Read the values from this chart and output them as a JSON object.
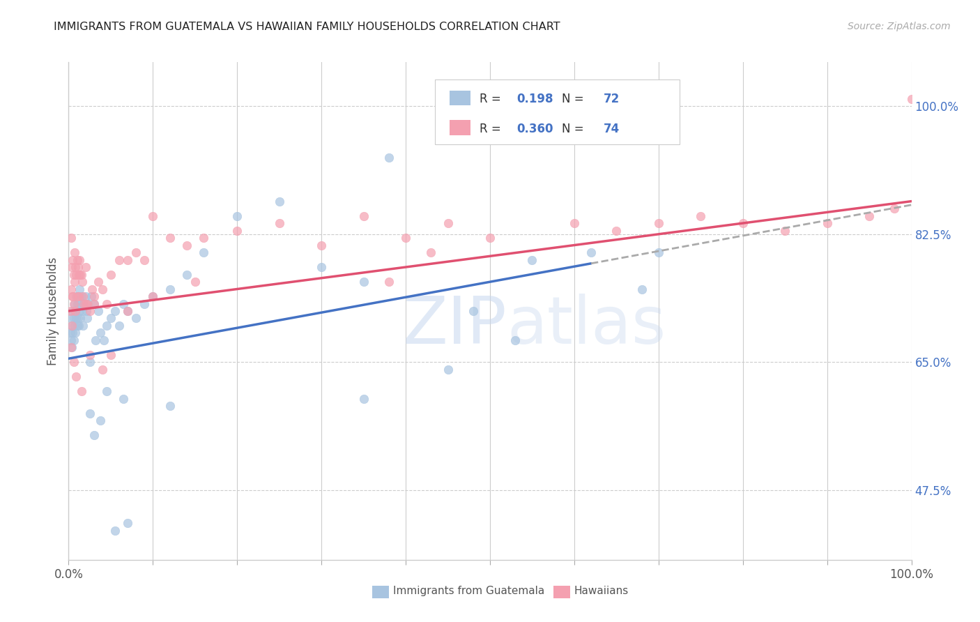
{
  "title": "IMMIGRANTS FROM GUATEMALA VS HAWAIIAN FAMILY HOUSEHOLDS CORRELATION CHART",
  "source": "Source: ZipAtlas.com",
  "ylabel": "Family Households",
  "ytick_labels": [
    "47.5%",
    "65.0%",
    "82.5%",
    "100.0%"
  ],
  "ytick_values": [
    0.475,
    0.65,
    0.825,
    1.0
  ],
  "legend_label1": "Immigrants from Guatemala",
  "legend_label2": "Hawaiians",
  "R1": "0.198",
  "N1": "72",
  "R2": "0.360",
  "N2": "74",
  "color_blue": "#a8c4e0",
  "color_pink": "#f4a0b0",
  "color_blue_line": "#4472c4",
  "color_pink_line": "#e05070",
  "color_blue_text": "#4472c4",
  "color_dash": "#aaaaaa",
  "blue_line_x0": 0.0,
  "blue_line_x1": 0.62,
  "blue_line_y0": 0.655,
  "blue_line_y1": 0.785,
  "dash_line_x0": 0.62,
  "dash_line_x1": 1.0,
  "dash_line_y0": 0.785,
  "dash_line_y1": 0.865,
  "pink_line_x0": 0.0,
  "pink_line_x1": 1.0,
  "pink_line_y0": 0.72,
  "pink_line_y1": 0.87,
  "xlim": [
    0.0,
    1.0
  ],
  "ylim": [
    0.38,
    1.06
  ],
  "xticks": [
    0.0,
    0.1,
    0.2,
    0.3,
    0.4,
    0.5,
    0.6,
    0.7,
    0.8,
    0.9,
    1.0
  ],
  "blue_x": [
    0.002,
    0.003,
    0.003,
    0.004,
    0.004,
    0.005,
    0.005,
    0.006,
    0.006,
    0.007,
    0.007,
    0.008,
    0.008,
    0.009,
    0.009,
    0.01,
    0.01,
    0.011,
    0.011,
    0.012,
    0.012,
    0.013,
    0.013,
    0.014,
    0.015,
    0.016,
    0.017,
    0.018,
    0.02,
    0.021,
    0.022,
    0.023,
    0.025,
    0.027,
    0.03,
    0.032,
    0.035,
    0.038,
    0.042,
    0.045,
    0.05,
    0.055,
    0.06,
    0.065,
    0.07,
    0.08,
    0.09,
    0.1,
    0.12,
    0.14,
    0.16,
    0.2,
    0.25,
    0.3,
    0.35,
    0.38,
    0.48,
    0.53,
    0.55,
    0.62,
    0.68,
    0.7,
    0.35,
    0.45,
    0.065,
    0.12,
    0.025,
    0.03,
    0.038,
    0.045,
    0.055,
    0.07
  ],
  "blue_y": [
    0.69,
    0.71,
    0.68,
    0.7,
    0.67,
    0.72,
    0.69,
    0.71,
    0.68,
    0.73,
    0.7,
    0.72,
    0.69,
    0.74,
    0.71,
    0.73,
    0.7,
    0.74,
    0.71,
    0.73,
    0.7,
    0.75,
    0.72,
    0.71,
    0.74,
    0.72,
    0.7,
    0.73,
    0.74,
    0.72,
    0.71,
    0.73,
    0.65,
    0.74,
    0.73,
    0.68,
    0.72,
    0.69,
    0.68,
    0.7,
    0.71,
    0.72,
    0.7,
    0.73,
    0.72,
    0.71,
    0.73,
    0.74,
    0.75,
    0.77,
    0.8,
    0.85,
    0.87,
    0.78,
    0.76,
    0.93,
    0.72,
    0.68,
    0.79,
    0.8,
    0.75,
    0.8,
    0.6,
    0.64,
    0.6,
    0.59,
    0.58,
    0.55,
    0.57,
    0.61,
    0.42,
    0.43
  ],
  "pink_x": [
    0.002,
    0.003,
    0.003,
    0.004,
    0.004,
    0.005,
    0.005,
    0.006,
    0.006,
    0.007,
    0.007,
    0.008,
    0.009,
    0.01,
    0.01,
    0.011,
    0.012,
    0.013,
    0.014,
    0.015,
    0.016,
    0.017,
    0.018,
    0.02,
    0.022,
    0.025,
    0.028,
    0.03,
    0.035,
    0.04,
    0.045,
    0.05,
    0.06,
    0.07,
    0.08,
    0.09,
    0.1,
    0.12,
    0.14,
    0.16,
    0.2,
    0.25,
    0.3,
    0.35,
    0.4,
    0.45,
    0.5,
    0.6,
    0.65,
    0.7,
    0.75,
    0.8,
    0.85,
    0.9,
    0.95,
    0.98,
    0.003,
    0.006,
    0.009,
    0.015,
    0.025,
    0.04,
    0.005,
    0.008,
    0.012,
    0.02,
    0.03,
    0.05,
    0.07,
    0.1,
    0.15,
    0.38,
    0.43,
    1.0
  ],
  "pink_y": [
    0.72,
    0.82,
    0.75,
    0.78,
    0.7,
    0.79,
    0.74,
    0.77,
    0.73,
    0.8,
    0.76,
    0.78,
    0.77,
    0.79,
    0.74,
    0.78,
    0.77,
    0.79,
    0.77,
    0.77,
    0.76,
    0.74,
    0.73,
    0.78,
    0.73,
    0.72,
    0.75,
    0.74,
    0.76,
    0.75,
    0.73,
    0.77,
    0.79,
    0.79,
    0.8,
    0.79,
    0.85,
    0.82,
    0.81,
    0.82,
    0.83,
    0.84,
    0.81,
    0.85,
    0.82,
    0.84,
    0.82,
    0.84,
    0.83,
    0.84,
    0.85,
    0.84,
    0.83,
    0.84,
    0.85,
    0.86,
    0.67,
    0.65,
    0.63,
    0.61,
    0.66,
    0.64,
    0.74,
    0.72,
    0.74,
    0.73,
    0.73,
    0.66,
    0.72,
    0.74,
    0.76,
    0.76,
    0.8,
    1.01
  ]
}
